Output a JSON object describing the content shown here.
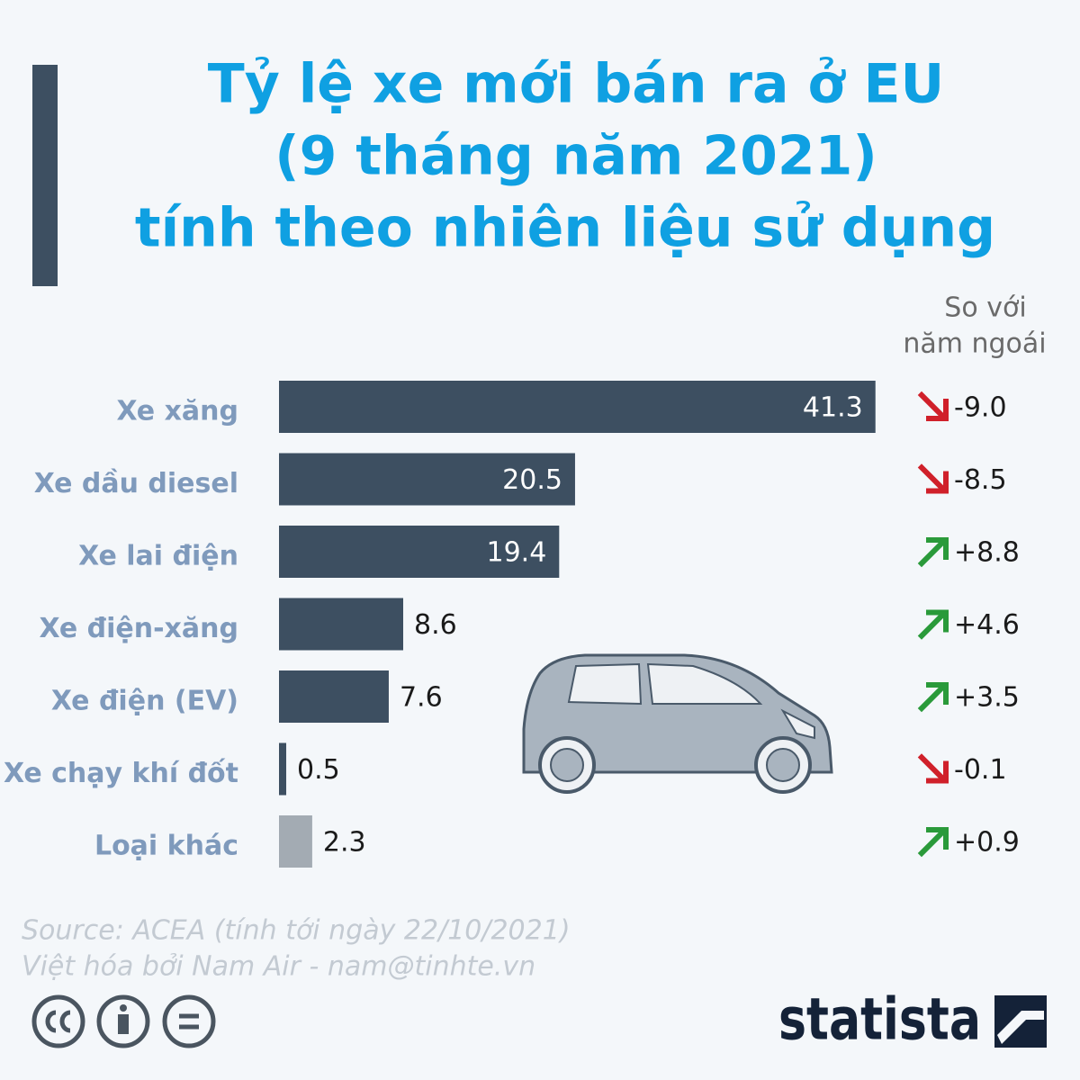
{
  "chart_data": {
    "type": "bar",
    "title": [
      "Tỷ lệ xe mới bán ra ở EU",
      "(9 tháng năm 2021)",
      "tính theo nhiên liệu sử dụng"
    ],
    "categories": [
      "Xe xăng",
      "Xe dầu diesel",
      "Xe lai điện",
      "Xe điện-xăng",
      "Xe điện (EV)",
      "Xe chạy khí đốt",
      "Loại khác"
    ],
    "values": [
      41.3,
      20.5,
      19.4,
      8.6,
      7.6,
      0.5,
      2.3
    ],
    "colors": [
      "#3d4f61",
      "#3d4f61",
      "#3d4f61",
      "#3d4f61",
      "#3d4f61",
      "#3d4f61",
      "#a3abb3"
    ],
    "xlim": [
      0,
      43
    ],
    "change": {
      "title": [
        "So với",
        "năm ngoái"
      ],
      "values": [
        -9.0,
        -8.5,
        8.8,
        4.6,
        3.5,
        -0.1,
        0.9
      ],
      "value_labels": [
        "-9.0",
        "-8.5",
        "+8.8",
        "+4.6",
        "+3.5",
        "-0.1",
        "+0.9"
      ]
    },
    "source": [
      "Source: ACEA (tính tới ngày 22/10/2021)",
      "Việt hóa bởi Nam Air - nam@tinhte.vn"
    ],
    "logo": "statista"
  }
}
